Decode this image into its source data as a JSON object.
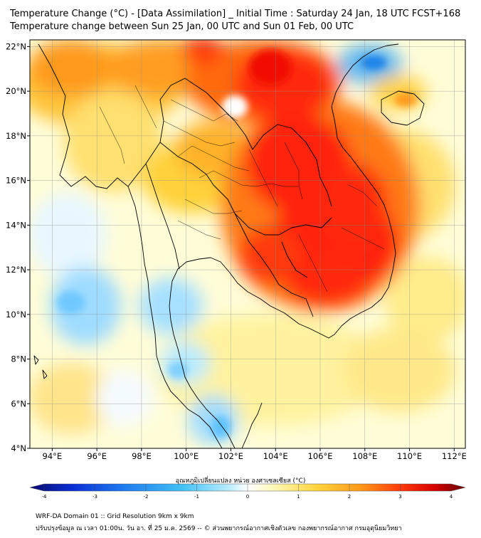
{
  "header": {
    "title_line1": "Temperature Change (°C) - [Data Assimilation] _ Initial Time : Saturday 24 Jan, 18 UTC FCST+168",
    "title_line2": "Temperature change between Sun 25 Jan, 00 UTC and Sun 01 Feb, 00 UTC"
  },
  "map": {
    "lon_range": [
      93,
      112.5
    ],
    "lat_range": [
      4,
      22.3
    ],
    "lon_ticks": [
      {
        "value": 94,
        "label": "94°E"
      },
      {
        "value": 96,
        "label": "96°E"
      },
      {
        "value": 98,
        "label": "98°E"
      },
      {
        "value": 100,
        "label": "100°E"
      },
      {
        "value": 102,
        "label": "102°E"
      },
      {
        "value": 104,
        "label": "104°E"
      },
      {
        "value": 106,
        "label": "106°E"
      },
      {
        "value": 108,
        "label": "108°E"
      },
      {
        "value": 110,
        "label": "110°E"
      },
      {
        "value": 112,
        "label": "112°E"
      }
    ],
    "lat_ticks": [
      {
        "value": 4,
        "label": "4°N"
      },
      {
        "value": 6,
        "label": "6°N"
      },
      {
        "value": 8,
        "label": "8°N"
      },
      {
        "value": 10,
        "label": "10°N"
      },
      {
        "value": 12,
        "label": "12°N"
      },
      {
        "value": 14,
        "label": "14°N"
      },
      {
        "value": 16,
        "label": "16°N"
      },
      {
        "value": 18,
        "label": "18°N"
      },
      {
        "value": 20,
        "label": "20°N"
      },
      {
        "value": 22,
        "label": "22°N"
      }
    ],
    "background_color": "#fffdd8"
  },
  "colorbar": {
    "title": "อุณหภูมิเปลี่ยนแปลง หน่วย องศาเซลเซียส (°C)",
    "min": -4,
    "max": 4,
    "tick_labels": [
      "-4",
      "-3",
      "-2",
      "-1",
      "0",
      "1",
      "2",
      "3",
      "4"
    ],
    "colors": [
      "#08086e",
      "#0a2fd8",
      "#1f7ef0",
      "#41c1f5",
      "#bdefff",
      "#ffffff",
      "#fff9b8",
      "#ffd43a",
      "#ff9918",
      "#ff3a0a",
      "#d40000",
      "#6a0000"
    ]
  },
  "footer": {
    "line1": "WRF-DA Domain 01 :: Grid Resolution 9km x 9km",
    "line2": "ปรับปรุงข้อมูล ณ เวลา 01:00น. วัน อา. ที่ 25 ม.ค. 2569 -- © ส่วนพยากรณ์อากาศเชิงตัวเลข กองพยากรณ์อากาศ กรมอุตุนิยมวิทยา"
  }
}
